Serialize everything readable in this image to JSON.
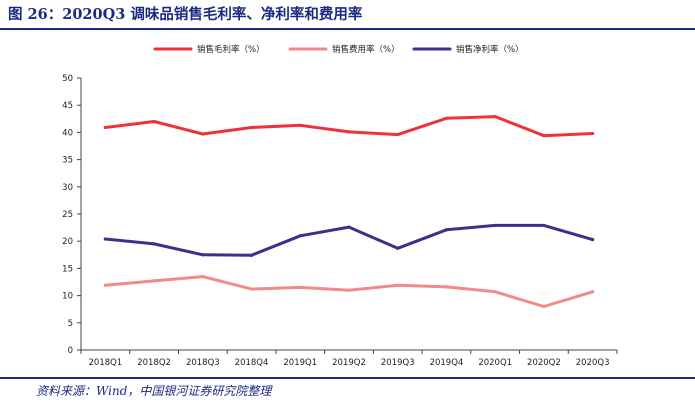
{
  "header": {
    "title": "图 26：2020Q3 调味品销售毛利率、净利率和费用率"
  },
  "footer": {
    "source": "资料来源：Wind，中国银河证券研究院整理"
  },
  "chart_data": {
    "type": "line",
    "title": "图 26：2020Q3 调味品销售毛利率、净利率和费用率",
    "xlabel": "",
    "ylabel": "",
    "ylim": [
      0,
      50
    ],
    "yticks": [
      "0",
      "5",
      "10",
      "15",
      "20",
      "25",
      "30",
      "35",
      "40",
      "45",
      "50"
    ],
    "grid": false,
    "legend_position": "top-center",
    "categories": [
      "2018Q1",
      "2018Q2",
      "2018Q3",
      "2018Q4",
      "2019Q1",
      "2019Q2",
      "2019Q3",
      "2019Q4",
      "2020Q1",
      "2020Q2",
      "2020Q3"
    ],
    "series": [
      {
        "name": "销售毛利率（%）",
        "color": "#ee3338",
        "values": [
          40.9,
          42.0,
          39.7,
          40.9,
          41.3,
          40.1,
          39.6,
          42.6,
          42.9,
          39.4,
          39.8
        ]
      },
      {
        "name": "销售费用率（%）",
        "color": "#f28a8a",
        "values": [
          11.9,
          12.7,
          13.5,
          11.2,
          11.5,
          11.0,
          11.9,
          11.6,
          10.7,
          8.0,
          10.7
        ]
      },
      {
        "name": "销售净利率（%）",
        "color": "#3b318c",
        "values": [
          20.4,
          19.5,
          17.5,
          17.4,
          21.0,
          22.6,
          18.7,
          22.1,
          22.9,
          22.9,
          20.3
        ]
      }
    ]
  }
}
